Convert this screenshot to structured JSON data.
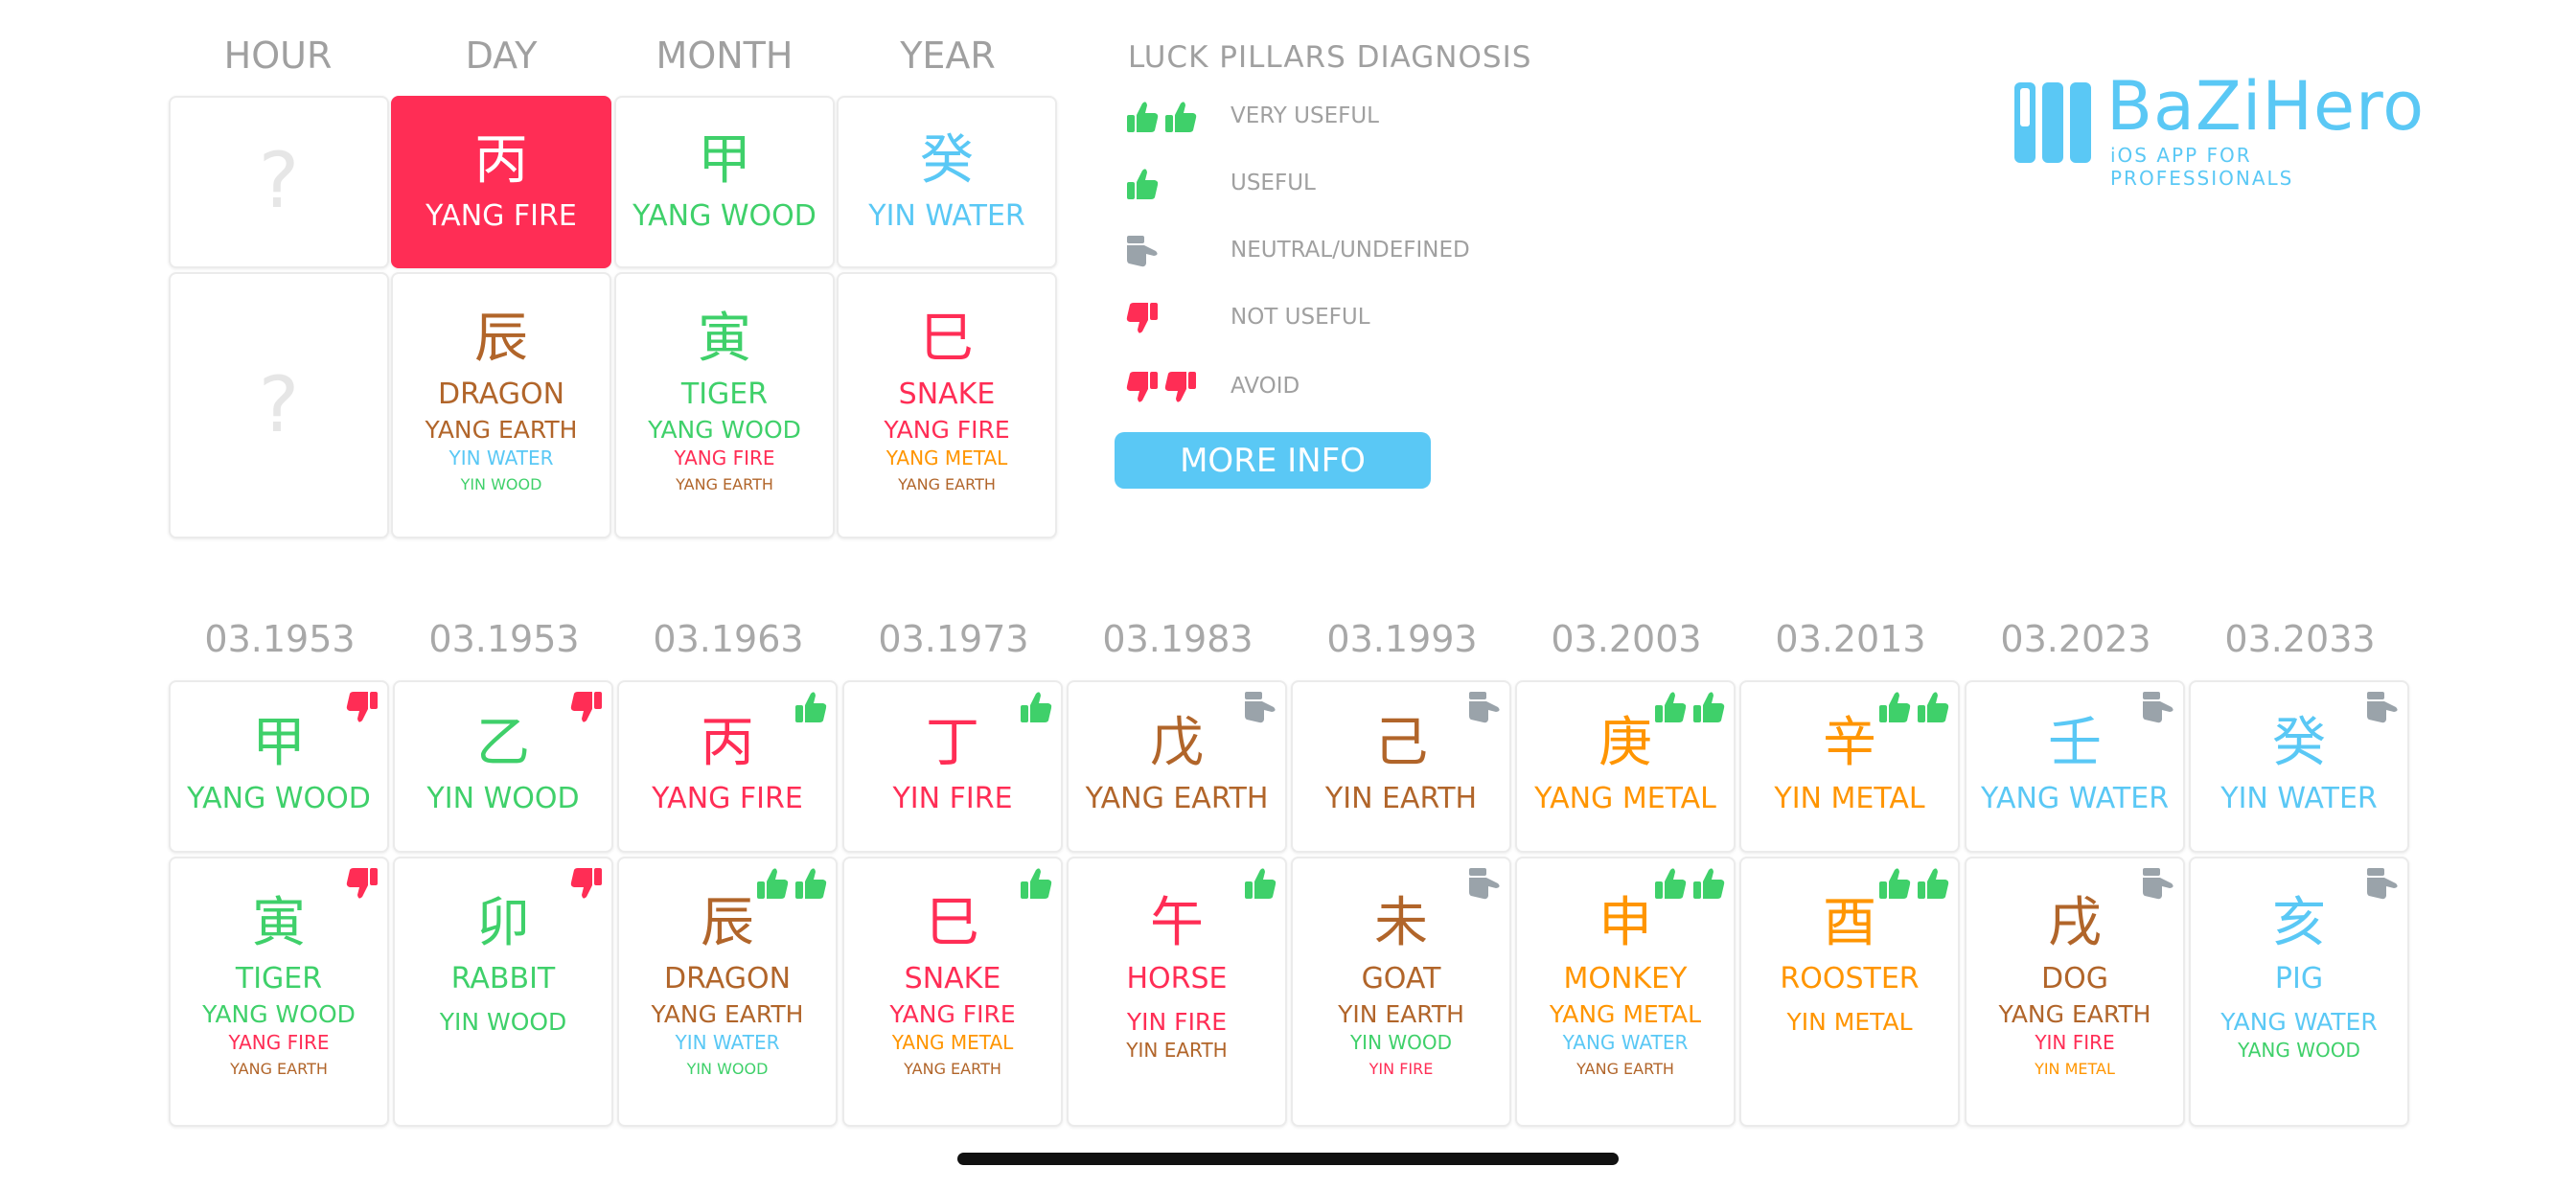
{
  "colors": {
    "wood": "#3fd06a",
    "fire": "#ff2d55",
    "earth": "#b1652a",
    "metal": "#ff9500",
    "water": "#5ac8f5",
    "neutral": "#9aa3aa",
    "header": "#a0a0a0"
  },
  "natal": {
    "headers": [
      "HOUR",
      "DAY",
      "MONTH",
      "YEAR"
    ],
    "stems": [
      {
        "char": "?",
        "label": "",
        "element": "unknown"
      },
      {
        "char": "丙",
        "label": "YANG FIRE",
        "element": "fire",
        "highlight": true
      },
      {
        "char": "甲",
        "label": "YANG WOOD",
        "element": "wood"
      },
      {
        "char": "癸",
        "label": "YIN WATER",
        "element": "water"
      }
    ],
    "branches": [
      {
        "char": "?",
        "animal": "",
        "hidden": []
      },
      {
        "char": "辰",
        "animal": "DRAGON",
        "element": "earth",
        "hidden": [
          {
            "t": "YANG EARTH",
            "e": "earth"
          },
          {
            "t": "YIN WATER",
            "e": "water"
          },
          {
            "t": "YIN WOOD",
            "e": "wood"
          }
        ]
      },
      {
        "char": "寅",
        "animal": "TIGER",
        "element": "wood",
        "hidden": [
          {
            "t": "YANG WOOD",
            "e": "wood"
          },
          {
            "t": "YANG FIRE",
            "e": "fire"
          },
          {
            "t": "YANG EARTH",
            "e": "earth"
          }
        ]
      },
      {
        "char": "巳",
        "animal": "SNAKE",
        "element": "fire",
        "hidden": [
          {
            "t": "YANG FIRE",
            "e": "fire"
          },
          {
            "t": "YANG METAL",
            "e": "metal"
          },
          {
            "t": "YANG EARTH",
            "e": "earth"
          }
        ]
      }
    ]
  },
  "legend": {
    "title": "LUCK PILLARS DIAGNOSIS",
    "items": [
      {
        "label": "VERY USEFUL",
        "icon": "double-thumbs-up-icon"
      },
      {
        "label": "USEFUL",
        "icon": "thumbs-up-icon"
      },
      {
        "label": "NEUTRAL/UNDEFINED",
        "icon": "thumbs-sideways-icon"
      },
      {
        "label": "NOT USEFUL",
        "icon": "thumbs-down-icon"
      },
      {
        "label": "AVOID",
        "icon": "double-thumbs-down-icon"
      }
    ],
    "more_info": "MORE INFO"
  },
  "brand": {
    "name": "BaZiHero",
    "tagline": "iOS APP FOR PROFESSIONALS"
  },
  "luck": [
    {
      "date": "03.1953",
      "stem": {
        "char": "甲",
        "label": "YANG WOOD",
        "e": "wood",
        "r": "down"
      },
      "branch": {
        "char": "寅",
        "animal": "TIGER",
        "e": "wood",
        "r": "down",
        "hidden": [
          {
            "t": "YANG WOOD",
            "e": "wood"
          },
          {
            "t": "YANG FIRE",
            "e": "fire"
          },
          {
            "t": "YANG EARTH",
            "e": "earth"
          }
        ]
      }
    },
    {
      "date": "03.1953",
      "stem": {
        "char": "乙",
        "label": "YIN WOOD",
        "e": "wood",
        "r": "down"
      },
      "branch": {
        "char": "卯",
        "animal": "RABBIT",
        "e": "wood",
        "r": "down",
        "hidden": [
          {
            "t": "YIN WOOD",
            "e": "wood"
          }
        ]
      }
    },
    {
      "date": "03.1963",
      "stem": {
        "char": "丙",
        "label": "YANG FIRE",
        "e": "fire",
        "r": "up"
      },
      "branch": {
        "char": "辰",
        "animal": "DRAGON",
        "e": "earth",
        "r": "up2",
        "hidden": [
          {
            "t": "YANG EARTH",
            "e": "earth"
          },
          {
            "t": "YIN WATER",
            "e": "water"
          },
          {
            "t": "YIN WOOD",
            "e": "wood"
          }
        ]
      }
    },
    {
      "date": "03.1973",
      "stem": {
        "char": "丁",
        "label": "YIN FIRE",
        "e": "fire",
        "r": "up"
      },
      "branch": {
        "char": "巳",
        "animal": "SNAKE",
        "e": "fire",
        "r": "up",
        "hidden": [
          {
            "t": "YANG FIRE",
            "e": "fire"
          },
          {
            "t": "YANG METAL",
            "e": "metal"
          },
          {
            "t": "YANG EARTH",
            "e": "earth"
          }
        ]
      }
    },
    {
      "date": "03.1983",
      "stem": {
        "char": "戊",
        "label": "YANG EARTH",
        "e": "earth",
        "r": "side"
      },
      "branch": {
        "char": "午",
        "animal": "HORSE",
        "e": "fire",
        "r": "up",
        "hidden": [
          {
            "t": "YIN FIRE",
            "e": "fire"
          },
          {
            "t": "YIN EARTH",
            "e": "earth"
          }
        ]
      }
    },
    {
      "date": "03.1993",
      "stem": {
        "char": "己",
        "label": "YIN EARTH",
        "e": "earth",
        "r": "side"
      },
      "branch": {
        "char": "未",
        "animal": "GOAT",
        "e": "earth",
        "r": "side",
        "hidden": [
          {
            "t": "YIN EARTH",
            "e": "earth"
          },
          {
            "t": "YIN WOOD",
            "e": "wood"
          },
          {
            "t": "YIN FIRE",
            "e": "fire"
          }
        ]
      }
    },
    {
      "date": "03.2003",
      "stem": {
        "char": "庚",
        "label": "YANG METAL",
        "e": "metal",
        "r": "up2"
      },
      "branch": {
        "char": "申",
        "animal": "MONKEY",
        "e": "metal",
        "r": "up2",
        "hidden": [
          {
            "t": "YANG METAL",
            "e": "metal"
          },
          {
            "t": "YANG WATER",
            "e": "water"
          },
          {
            "t": "YANG EARTH",
            "e": "earth"
          }
        ]
      }
    },
    {
      "date": "03.2013",
      "stem": {
        "char": "辛",
        "label": "YIN METAL",
        "e": "metal",
        "r": "up2"
      },
      "branch": {
        "char": "酉",
        "animal": "ROOSTER",
        "e": "metal",
        "r": "up2",
        "hidden": [
          {
            "t": "YIN METAL",
            "e": "metal"
          }
        ]
      }
    },
    {
      "date": "03.2023",
      "stem": {
        "char": "壬",
        "label": "YANG WATER",
        "e": "water",
        "r": "side"
      },
      "branch": {
        "char": "戌",
        "animal": "DOG",
        "e": "earth",
        "r": "side",
        "hidden": [
          {
            "t": "YANG EARTH",
            "e": "earth"
          },
          {
            "t": "YIN FIRE",
            "e": "fire"
          },
          {
            "t": "YIN METAL",
            "e": "metal"
          }
        ]
      }
    },
    {
      "date": "03.2033",
      "stem": {
        "char": "癸",
        "label": "YIN WATER",
        "e": "water",
        "r": "side"
      },
      "branch": {
        "char": "亥",
        "animal": "PIG",
        "e": "water",
        "r": "side",
        "hidden": [
          {
            "t": "YANG WATER",
            "e": "water"
          },
          {
            "t": "YANG WOOD",
            "e": "wood"
          }
        ]
      }
    }
  ]
}
